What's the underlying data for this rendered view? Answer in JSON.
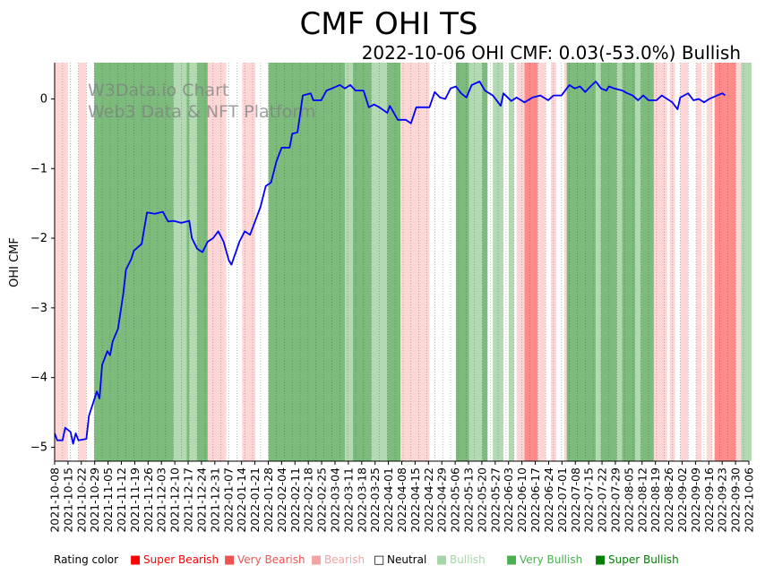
{
  "chart_data": {
    "type": "line",
    "title": "CMF OHI TS",
    "subtitle": "2022-10-06 OHI CMF: 0.03(-53.0%) Bullish",
    "xlabel": "",
    "ylabel": "OHI CMF",
    "ylim": [
      -5.2,
      0.52
    ],
    "yticks": [
      0,
      -1,
      -2,
      -3,
      -4,
      -5
    ],
    "date_start": "2021-10-08",
    "date_end": "2022-10-06",
    "x_tick_labels": [
      "2021-10-08",
      "2021-10-15",
      "2021-10-22",
      "2021-10-29",
      "2021-11-05",
      "2021-11-12",
      "2021-11-19",
      "2021-11-26",
      "2021-12-03",
      "2021-12-10",
      "2021-12-17",
      "2021-12-24",
      "2021-12-31",
      "2022-01-07",
      "2022-01-14",
      "2022-01-21",
      "2022-01-28",
      "2022-02-04",
      "2022-02-11",
      "2022-02-18",
      "2022-02-25",
      "2022-03-04",
      "2022-03-11",
      "2022-03-18",
      "2022-03-25",
      "2022-04-01",
      "2022-04-08",
      "2022-04-15",
      "2022-04-22",
      "2022-04-29",
      "2022-05-06",
      "2022-05-13",
      "2022-05-20",
      "2022-05-27",
      "2022-06-03",
      "2022-06-10",
      "2022-06-17",
      "2022-06-24",
      "2022-07-01",
      "2022-07-08",
      "2022-07-15",
      "2022-07-22",
      "2022-07-29",
      "2022-08-05",
      "2022-08-12",
      "2022-08-19",
      "2022-08-26",
      "2022-09-02",
      "2022-09-09",
      "2022-09-16",
      "2022-09-23",
      "2022-09-30",
      "2022-10-06"
    ],
    "series": [
      {
        "name": "OHI CMF",
        "color": "#0000ff",
        "points": [
          [
            0,
            -4.8
          ],
          [
            1,
            -4.9
          ],
          [
            3,
            -4.9
          ],
          [
            4,
            -4.72
          ],
          [
            6,
            -4.78
          ],
          [
            7,
            -4.95
          ],
          [
            8,
            -4.8
          ],
          [
            9,
            -4.9
          ],
          [
            12,
            -4.88
          ],
          [
            13,
            -4.55
          ],
          [
            16,
            -4.2
          ],
          [
            17,
            -4.3
          ],
          [
            18,
            -3.82
          ],
          [
            20,
            -3.62
          ],
          [
            21,
            -3.68
          ],
          [
            22,
            -3.48
          ],
          [
            24,
            -3.3
          ],
          [
            26,
            -2.8
          ],
          [
            27,
            -2.45
          ],
          [
            29,
            -2.3
          ],
          [
            30,
            -2.18
          ],
          [
            33,
            -2.08
          ],
          [
            34,
            -1.85
          ],
          [
            35,
            -1.63
          ],
          [
            38,
            -1.65
          ],
          [
            41,
            -1.62
          ],
          [
            43,
            -1.76
          ],
          [
            45,
            -1.75
          ],
          [
            48,
            -1.78
          ],
          [
            51,
            -1.75
          ],
          [
            52,
            -2.0
          ],
          [
            54,
            -2.15
          ],
          [
            56,
            -2.2
          ],
          [
            58,
            -2.05
          ],
          [
            60,
            -2.0
          ],
          [
            62,
            -1.9
          ],
          [
            64,
            -2.05
          ],
          [
            66,
            -2.32
          ],
          [
            67,
            -2.38
          ],
          [
            70,
            -2.05
          ],
          [
            72,
            -1.9
          ],
          [
            74,
            -1.95
          ],
          [
            76,
            -1.75
          ],
          [
            78,
            -1.55
          ],
          [
            80,
            -1.25
          ],
          [
            82,
            -1.2
          ],
          [
            84,
            -0.9
          ],
          [
            86,
            -0.7
          ],
          [
            89,
            -0.7
          ],
          [
            90,
            -0.5
          ],
          [
            92,
            -0.48
          ],
          [
            94,
            0.05
          ],
          [
            97,
            0.08
          ],
          [
            98,
            -0.02
          ],
          [
            101,
            -0.02
          ],
          [
            103,
            0.12
          ],
          [
            105,
            0.15
          ],
          [
            108,
            0.2
          ],
          [
            110,
            0.15
          ],
          [
            112,
            0.2
          ],
          [
            114,
            0.12
          ],
          [
            117,
            0.12
          ],
          [
            119,
            -0.12
          ],
          [
            121,
            -0.08
          ],
          [
            123,
            -0.12
          ],
          [
            126,
            -0.2
          ],
          [
            127,
            -0.1
          ],
          [
            130,
            -0.3
          ],
          [
            133,
            -0.3
          ],
          [
            135,
            -0.35
          ],
          [
            137,
            -0.12
          ],
          [
            140,
            -0.12
          ],
          [
            142,
            -0.12
          ],
          [
            144,
            0.1
          ],
          [
            146,
            0.02
          ],
          [
            148,
            0.0
          ],
          [
            150,
            0.15
          ],
          [
            152,
            0.18
          ],
          [
            154,
            0.08
          ],
          [
            156,
            0.02
          ],
          [
            158,
            0.2
          ],
          [
            161,
            0.25
          ],
          [
            163,
            0.12
          ],
          [
            166,
            0.05
          ],
          [
            169,
            -0.1
          ],
          [
            170,
            0.08
          ],
          [
            173,
            -0.03
          ],
          [
            175,
            0.02
          ],
          [
            178,
            -0.05
          ],
          [
            181,
            0.02
          ],
          [
            184,
            0.05
          ],
          [
            187,
            -0.02
          ],
          [
            189,
            0.05
          ],
          [
            192,
            0.05
          ],
          [
            195,
            0.2
          ],
          [
            197,
            0.15
          ],
          [
            199,
            0.18
          ],
          [
            201,
            0.1
          ],
          [
            203,
            0.18
          ],
          [
            205,
            0.25
          ],
          [
            207,
            0.15
          ],
          [
            209,
            0.12
          ],
          [
            210,
            0.18
          ],
          [
            212,
            0.15
          ],
          [
            215,
            0.12
          ],
          [
            217,
            0.08
          ],
          [
            219,
            0.05
          ],
          [
            221,
            -0.02
          ],
          [
            223,
            0.05
          ],
          [
            225,
            -0.02
          ],
          [
            228,
            -0.02
          ],
          [
            230,
            0.05
          ],
          [
            232,
            0.0
          ],
          [
            234,
            -0.05
          ],
          [
            236,
            -0.15
          ],
          [
            237,
            0.02
          ],
          [
            240,
            0.08
          ],
          [
            242,
            -0.02
          ],
          [
            244,
            0.0
          ],
          [
            246,
            -0.05
          ],
          [
            248,
            0.0
          ],
          [
            251,
            0.05
          ],
          [
            253,
            0.08
          ],
          [
            254,
            0.05
          ]
        ]
      }
    ],
    "rating_bands": [
      {
        "rating": "Bearish",
        "from": 0,
        "to": 5
      },
      {
        "rating": "Bearish",
        "from": 9,
        "to": 12
      },
      {
        "rating": "Very Bullish",
        "from": 15,
        "to": 45
      },
      {
        "rating": "Bullish",
        "from": 45,
        "to": 50
      },
      {
        "rating": "Very Bullish",
        "from": 50,
        "to": 51
      },
      {
        "rating": "Bullish",
        "from": 51,
        "to": 54
      },
      {
        "rating": "Very Bullish",
        "from": 54,
        "to": 58
      },
      {
        "rating": "Bearish",
        "from": 58,
        "to": 65
      },
      {
        "rating": "Bearish",
        "from": 71,
        "to": 76
      },
      {
        "rating": "Very Bullish",
        "from": 81,
        "to": 110
      },
      {
        "rating": "Bullish",
        "from": 110,
        "to": 113
      },
      {
        "rating": "Very Bullish",
        "from": 113,
        "to": 120
      },
      {
        "rating": "Bullish",
        "from": 120,
        "to": 126
      },
      {
        "rating": "Very Bullish",
        "from": 126,
        "to": 131
      },
      {
        "rating": "Bearish",
        "from": 131,
        "to": 142
      },
      {
        "rating": "Very Bullish",
        "from": 152,
        "to": 157
      },
      {
        "rating": "Bullish",
        "from": 157,
        "to": 162
      },
      {
        "rating": "Very Bullish",
        "from": 162,
        "to": 164
      },
      {
        "rating": "Bullish",
        "from": 166,
        "to": 170
      },
      {
        "rating": "Bullish",
        "from": 172,
        "to": 174
      },
      {
        "rating": "Bearish",
        "from": 175,
        "to": 178
      },
      {
        "rating": "Very Bearish",
        "from": 178,
        "to": 183
      },
      {
        "rating": "Bearish",
        "from": 183,
        "to": 186
      },
      {
        "rating": "Bearish",
        "from": 188,
        "to": 190
      },
      {
        "rating": "Bearish",
        "from": 193,
        "to": 195
      },
      {
        "rating": "Bearish",
        "from": 197,
        "to": 199
      },
      {
        "rating": "Very Bullish",
        "from": 194,
        "to": 205
      },
      {
        "rating": "Bullish",
        "from": 205,
        "to": 207
      },
      {
        "rating": "Very Bullish",
        "from": 207,
        "to": 213
      },
      {
        "rating": "Bullish",
        "from": 213,
        "to": 215
      },
      {
        "rating": "Very Bullish",
        "from": 215,
        "to": 220
      },
      {
        "rating": "Bullish",
        "from": 220,
        "to": 222
      },
      {
        "rating": "Very Bullish",
        "from": 222,
        "to": 227
      },
      {
        "rating": "Bearish",
        "from": 227,
        "to": 232
      },
      {
        "rating": "Bearish",
        "from": 233,
        "to": 235
      },
      {
        "rating": "Bearish",
        "from": 237,
        "to": 240
      },
      {
        "rating": "Bearish",
        "from": 243,
        "to": 245
      },
      {
        "rating": "Bearish",
        "from": 247,
        "to": 249
      },
      {
        "rating": "Very Bearish",
        "from": 250,
        "to": 258
      },
      {
        "rating": "Bearish",
        "from": 258,
        "to": 260
      },
      {
        "rating": "Bullish",
        "from": 260,
        "to": 264
      }
    ],
    "legend": {
      "title": "Rating color",
      "placement": "bottom",
      "items": [
        {
          "label": "Super Bearish",
          "color": "#ff0000"
        },
        {
          "label": "Very Bearish",
          "color": "#ef5350"
        },
        {
          "label": "Bearish",
          "color": "#f4a3a3"
        },
        {
          "label": "Neutral",
          "color": "#ffffff"
        },
        {
          "label": "Bullish",
          "color": "#a5d6a7"
        },
        {
          "label": "Very Bullish",
          "color": "#4caf50"
        },
        {
          "label": "Super Bullish",
          "color": "#008000"
        }
      ]
    },
    "band_colors": {
      "Super Bearish": "#ff0000",
      "Very Bearish": "#ff8a8a",
      "Bearish": "#ffd6d6",
      "Neutral": "#ffffff",
      "Bullish": "#b3d9b3",
      "Very Bullish": "#7cbb7c",
      "Super Bullish": "#008000"
    },
    "watermark": [
      "W3Data.io Chart",
      "Web3 Data & NFT Platform"
    ]
  }
}
